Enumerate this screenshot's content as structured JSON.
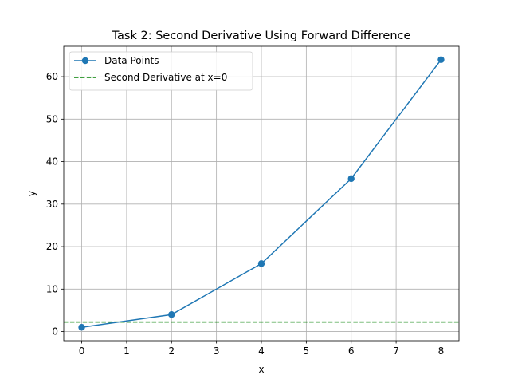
{
  "chart_data": {
    "type": "line",
    "title": "Task 2: Second Derivative Using Forward Difference",
    "xlabel": "x",
    "ylabel": "y",
    "xlim": [
      -0.4,
      8.4
    ],
    "ylim": [
      -2.15,
      67.15
    ],
    "xticks": [
      0,
      1,
      2,
      3,
      4,
      5,
      6,
      7,
      8
    ],
    "yticks": [
      0,
      10,
      20,
      30,
      40,
      50,
      60
    ],
    "grid": true,
    "legend_position": "top-left",
    "series": [
      {
        "name": "Data Points",
        "style": "line-with-markers",
        "color": "#1f77b4",
        "x": [
          0,
          2,
          4,
          6,
          8
        ],
        "y": [
          1,
          4,
          16,
          36,
          64
        ]
      },
      {
        "name": "Second Derivative at x=0",
        "style": "dashed-horizontal",
        "color": "#008000",
        "y": 2.25
      }
    ]
  }
}
